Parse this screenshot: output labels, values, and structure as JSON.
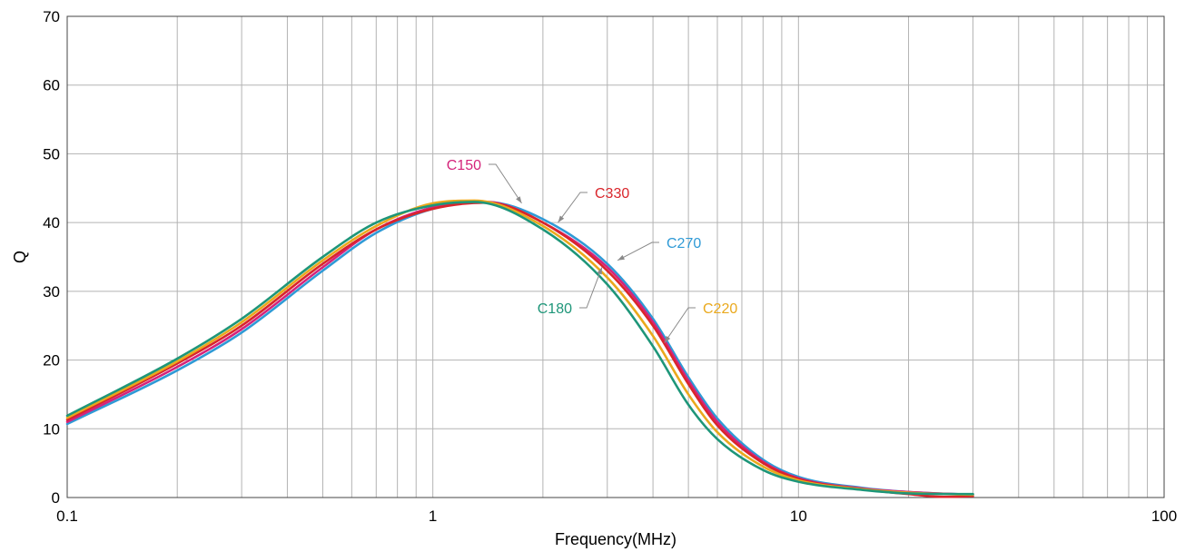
{
  "chart_data": {
    "type": "line",
    "xlabel": "Frequency(MHz)",
    "ylabel": "Q",
    "xscale": "log",
    "xlim": [
      0.1,
      100
    ],
    "ylim": [
      0,
      70
    ],
    "x_ticks": [
      0.1,
      1,
      10,
      100
    ],
    "x_tick_labels": [
      "0.1",
      "1",
      "10",
      "100"
    ],
    "y_ticks": [
      0,
      10,
      20,
      30,
      40,
      50,
      60,
      70
    ],
    "y_tick_labels": [
      "0",
      "10",
      "20",
      "30",
      "40",
      "50",
      "60",
      "70"
    ],
    "grid": true,
    "series": [
      {
        "name": "C270",
        "color": "#2f9ad6",
        "x": [
          0.1,
          0.2,
          0.3,
          0.5,
          0.7,
          1,
          1.4,
          2,
          3,
          4,
          5,
          6,
          8,
          10,
          15,
          20,
          30
        ],
        "y": [
          10.7,
          18.5,
          24.0,
          33.0,
          38.5,
          42.0,
          43.0,
          40.5,
          34.0,
          26.0,
          17.5,
          11.5,
          5.5,
          3.0,
          1.4,
          0.8,
          0.4
        ]
      },
      {
        "name": "C150",
        "color": "#d4237a",
        "x": [
          0.1,
          0.2,
          0.3,
          0.5,
          0.7,
          1,
          1.4,
          2,
          3,
          4,
          5,
          6,
          8,
          10,
          15,
          20,
          30
        ],
        "y": [
          11.0,
          19.0,
          24.5,
          33.5,
          39.0,
          42.2,
          43.0,
          40.0,
          33.5,
          25.5,
          17.0,
          11.0,
          5.2,
          2.8,
          1.3,
          0.8,
          0.4
        ]
      },
      {
        "name": "C330",
        "color": "#d9252b",
        "x": [
          0.1,
          0.2,
          0.3,
          0.5,
          0.7,
          1,
          1.4,
          2,
          3,
          4,
          5,
          6,
          8,
          10,
          15,
          20,
          25,
          30
        ],
        "y": [
          11.3,
          19.5,
          25.0,
          34.0,
          39.0,
          42.0,
          42.9,
          40.0,
          33.0,
          25.0,
          16.5,
          10.5,
          5.0,
          2.7,
          1.2,
          0.5,
          0.1,
          0.2
        ]
      },
      {
        "name": "C220",
        "color": "#eaa91d",
        "x": [
          0.1,
          0.2,
          0.3,
          0.5,
          0.7,
          1,
          1.3,
          2,
          3,
          4,
          5,
          6,
          8,
          10,
          15,
          20,
          30
        ],
        "y": [
          11.6,
          19.8,
          25.5,
          34.5,
          39.5,
          42.8,
          43.2,
          39.5,
          32.0,
          23.5,
          15.0,
          9.5,
          4.5,
          2.5,
          1.2,
          0.7,
          0.4
        ]
      },
      {
        "name": "C180",
        "color": "#1e9679",
        "x": [
          0.1,
          0.2,
          0.3,
          0.5,
          0.7,
          1,
          1.3,
          2,
          3,
          4,
          5,
          6,
          8,
          10,
          15,
          20,
          30
        ],
        "y": [
          11.9,
          20.2,
          26.0,
          35.0,
          40.0,
          42.5,
          43.0,
          39.0,
          31.0,
          22.0,
          13.5,
          8.5,
          4.0,
          2.3,
          1.1,
          0.6,
          0.5
        ]
      }
    ],
    "annotations": [
      {
        "text": "C150",
        "color": "#d4237a",
        "target": [
          1.75,
          42.8
        ]
      },
      {
        "text": "C330",
        "color": "#d9252b",
        "target": [
          2.2,
          40.0
        ]
      },
      {
        "text": "C270",
        "color": "#2f9ad6",
        "target": [
          3.2,
          34.5
        ]
      },
      {
        "text": "C180",
        "color": "#1e9679",
        "target": [
          2.9,
          33.5
        ]
      },
      {
        "text": "C220",
        "color": "#eaa91d",
        "target": [
          4.3,
          22.5
        ]
      }
    ]
  }
}
